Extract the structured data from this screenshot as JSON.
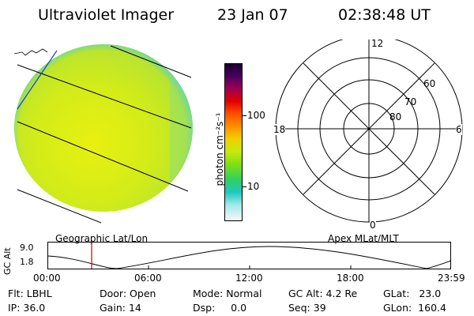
{
  "header": {
    "instrument": "Ultraviolet Imager",
    "date": "23 Jan 07",
    "time": "02:38:48 UT"
  },
  "colorbar": {
    "unit_label": "photon cm⁻²s⁻¹",
    "ticks": [
      "100",
      "10"
    ]
  },
  "polar_plot": {
    "mlt_labels": [
      "12",
      "18",
      "6",
      "0"
    ],
    "mlat_labels": [
      "60",
      "70",
      "80"
    ]
  },
  "panel_labels": {
    "left": "Geographic Lat/Lon",
    "right": "Apex MLat/MLT"
  },
  "altitude_plot": {
    "ylabel": "GC Alt",
    "yticks": [
      "9.0",
      "1.8"
    ],
    "xticks": [
      "00:00",
      "06:00",
      "12:00",
      "18:00",
      "23:59"
    ],
    "current_time_marker": "02:38"
  },
  "status": {
    "row1": [
      {
        "label": "Flt:",
        "value": "LBHL"
      },
      {
        "label": "Door:",
        "value": "Open"
      },
      {
        "label": "Mode:",
        "value": "Normal"
      },
      {
        "label": "GC Alt:",
        "value": "4.2 Re"
      },
      {
        "label": "GLat:",
        "value": "23.0"
      }
    ],
    "row2": [
      {
        "label": "IP:",
        "value": "36.0"
      },
      {
        "label": "Gain:",
        "value": "14"
      },
      {
        "label": "Dsp:",
        "value": "0.0"
      },
      {
        "label": "Seq:",
        "value": "39"
      },
      {
        "label": "GLon:",
        "value": "160.4"
      }
    ]
  },
  "colors": {
    "marker": "#cc0000",
    "limb": "#2040c0"
  }
}
